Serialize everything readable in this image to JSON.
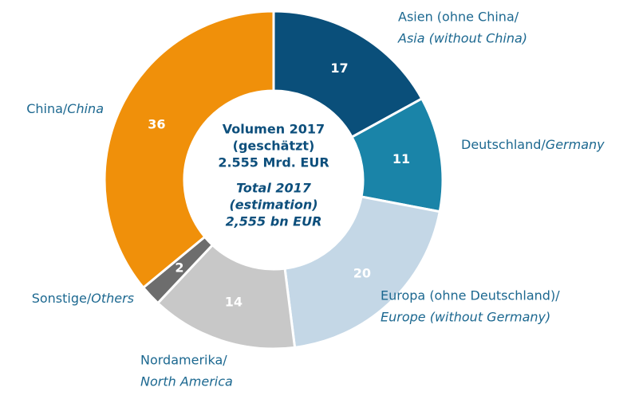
{
  "chart_data": {
    "type": "donut",
    "categories": [
      {
        "de": "Asien (ohne China/",
        "en": "Asia (without China)"
      },
      {
        "de": "Deutschland/",
        "en": "Germany"
      },
      {
        "de": "Europa (ohne Deutschland)/",
        "en": "Europe (without Germany)"
      },
      {
        "de": "Nordamerika/",
        "en": "North America"
      },
      {
        "de": "Sonstige/",
        "en": "Others"
      },
      {
        "de": "China/",
        "en": "China"
      }
    ],
    "values": [
      17,
      11,
      20,
      14,
      2,
      36
    ],
    "colors": [
      "#0a4f7a",
      "#1a84a8",
      "#c4d7e6",
      "#c8c8c8",
      "#6d6d6d",
      "#f0900a"
    ],
    "center_de": [
      "Volumen 2017",
      "(geschätzt)",
      "2.555 Mrd. EUR"
    ],
    "center_en": [
      "Total 2017",
      "(estimation)",
      "2,555 bn EUR"
    ]
  }
}
